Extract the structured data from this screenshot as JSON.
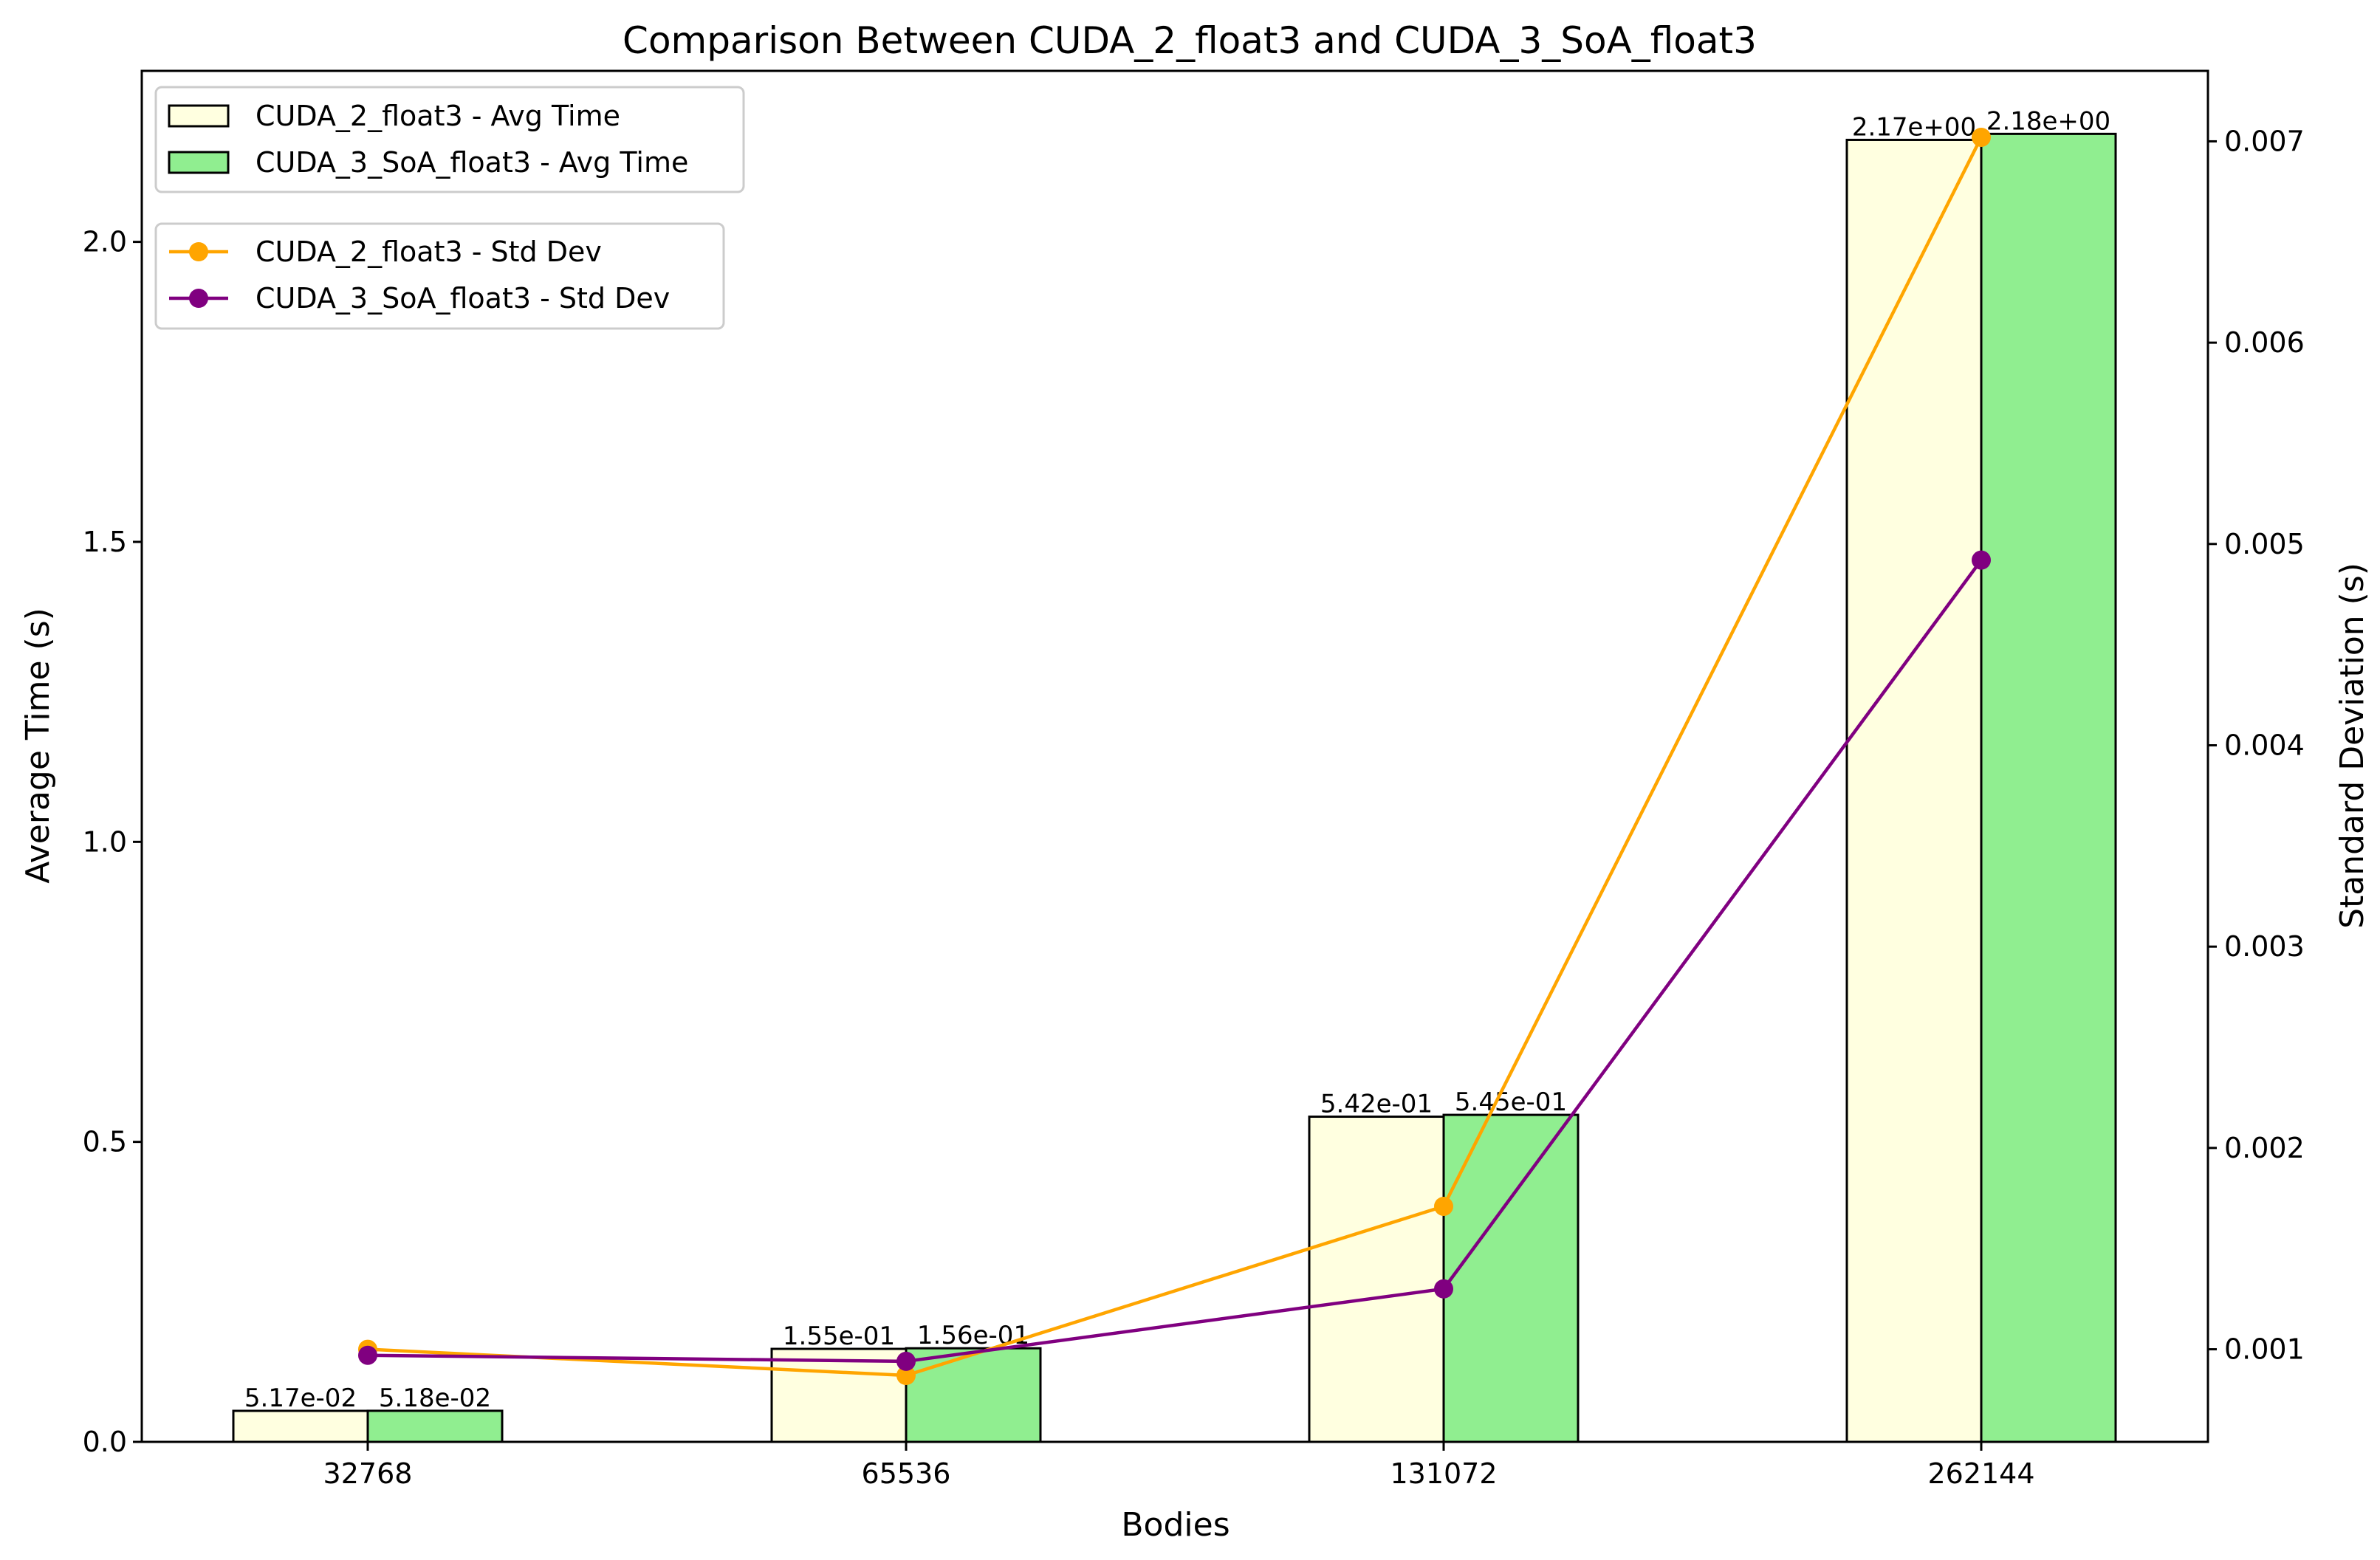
{
  "chart_data": {
    "type": "bar",
    "title": "Comparison Between CUDA_2_float3 and CUDA_3_SoA_float3",
    "xlabel": "Bodies",
    "ylabel": "Average Time (s)",
    "y2label": "Standard Deviation (s)",
    "categories": [
      "32768",
      "65536",
      "131072",
      "262144"
    ],
    "ylim": [
      0,
      2.285
    ],
    "y2lim": [
      0.00054,
      0.00735
    ],
    "yticks": [
      "0.0",
      "0.5",
      "1.0",
      "1.5",
      "2.0"
    ],
    "y2ticks": [
      "0.001",
      "0.002",
      "0.003",
      "0.004",
      "0.005",
      "0.006",
      "0.007"
    ],
    "bar_series": [
      {
        "name": "CUDA_2_float3 - Avg Time",
        "color": "#ffffe0",
        "values": [
          0.0517,
          0.155,
          0.542,
          2.17
        ],
        "labels": [
          "5.17e-02",
          "1.55e-01",
          "5.42e-01",
          "2.17e+00"
        ]
      },
      {
        "name": "CUDA_3_SoA_float3 - Avg Time",
        "color": "#90ee90",
        "values": [
          0.0518,
          0.156,
          0.545,
          2.18
        ],
        "labels": [
          "5.18e-02",
          "1.56e-01",
          "5.45e-01",
          "2.18e+00"
        ]
      }
    ],
    "line_series": [
      {
        "name": "CUDA_2_float3 - Std Dev",
        "color": "#ffa500",
        "values": [
          0.001,
          0.00087,
          0.00171,
          0.00702
        ]
      },
      {
        "name": "CUDA_3_SoA_float3 - Std Dev",
        "color": "#800080",
        "values": [
          0.00097,
          0.00094,
          0.0013,
          0.00492
        ]
      }
    ],
    "legend_placement": "top-left",
    "grid": false
  }
}
